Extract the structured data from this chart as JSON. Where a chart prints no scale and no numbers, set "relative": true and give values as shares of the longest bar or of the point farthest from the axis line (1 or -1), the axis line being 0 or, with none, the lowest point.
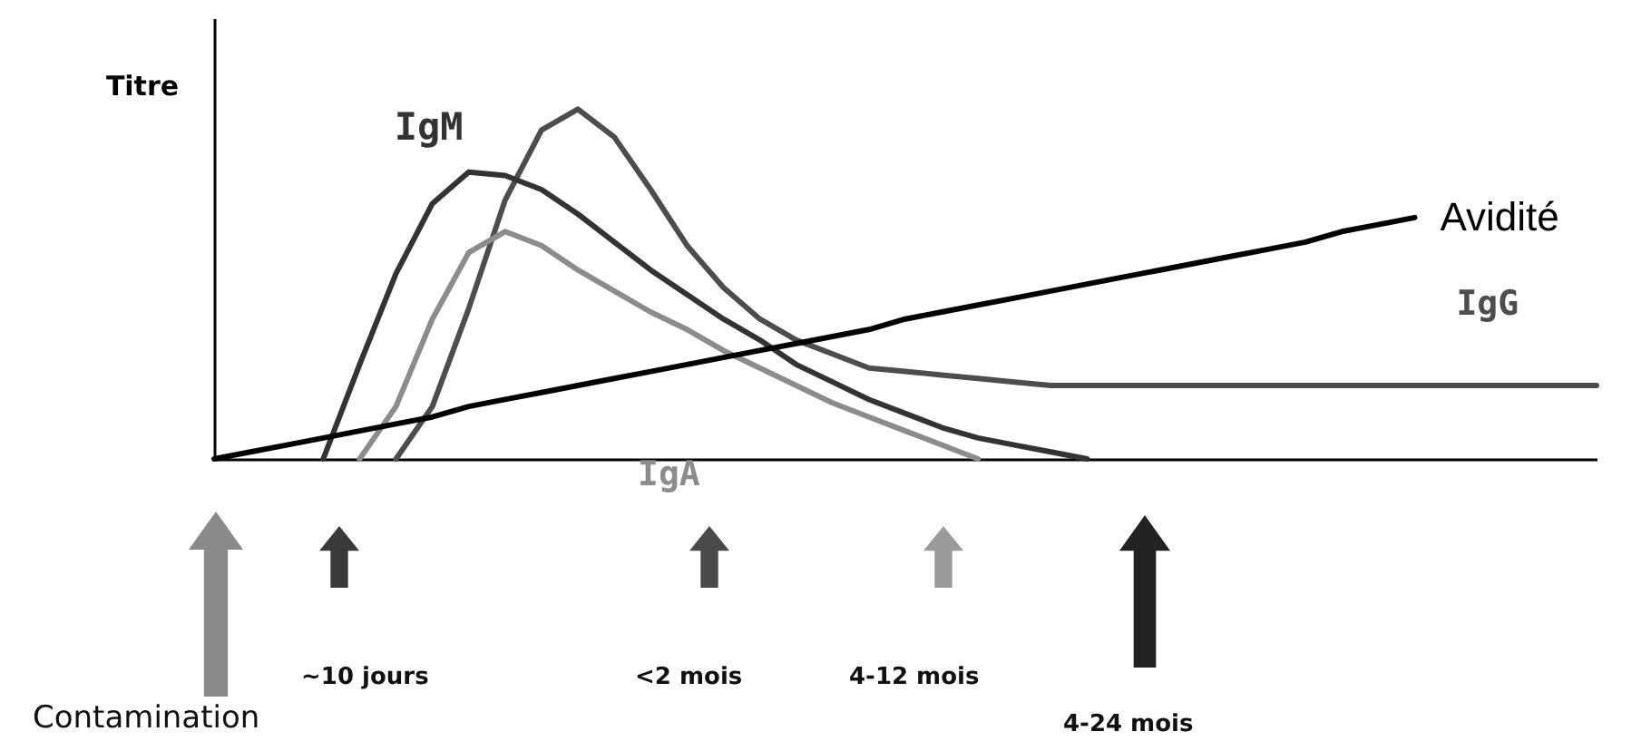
{
  "chart_data": {
    "type": "line",
    "relative": true,
    "ylabel": "Titre",
    "categories": [
      null,
      null,
      null,
      null,
      null,
      null,
      null,
      null,
      null,
      null,
      null,
      null,
      null,
      null,
      null,
      null,
      null,
      null,
      null,
      null,
      null,
      null,
      null,
      null,
      null,
      null,
      null,
      null,
      null,
      null,
      null,
      null,
      null,
      null,
      null,
      null,
      null,
      null,
      null
    ],
    "series": [
      {
        "name": "IgG",
        "color": "#4d4d4d",
        "values": [
          null,
          null,
          null,
          null,
          null,
          0,
          0.15,
          0.43,
          0.74,
          0.94,
          1.0,
          0.92,
          0.77,
          0.61,
          0.49,
          0.4,
          0.34,
          0.3,
          0.26,
          0.25,
          0.24,
          0.23,
          0.22,
          0.21,
          0.21,
          0.21,
          0.21,
          0.21,
          0.21,
          0.21,
          0.21,
          0.21,
          0.21,
          0.21,
          0.21,
          0.21,
          0.21,
          0.21,
          0.21
        ]
      },
      {
        "name": "IgM",
        "color": "#333333",
        "values": [
          null,
          null,
          null,
          0,
          0.27,
          0.53,
          0.73,
          0.82,
          0.81,
          0.77,
          0.7,
          0.62,
          0.54,
          0.47,
          0.4,
          0.34,
          0.27,
          0.22,
          0.17,
          0.13,
          0.09,
          0.06,
          0.04,
          0.02,
          0,
          null,
          null,
          null,
          null,
          null,
          null,
          null,
          null,
          null,
          null,
          null,
          null,
          null,
          null
        ]
      },
      {
        "name": "IgA",
        "color": "#8c8c8c",
        "values": [
          null,
          null,
          null,
          null,
          0,
          0.15,
          0.4,
          0.59,
          0.65,
          0.61,
          0.54,
          0.48,
          0.42,
          0.37,
          0.31,
          0.26,
          0.21,
          0.16,
          0.12,
          0.08,
          0.04,
          0,
          null,
          null,
          null,
          null,
          null,
          null,
          null,
          null,
          null,
          null,
          null,
          null,
          null,
          null,
          null,
          null,
          null
        ]
      },
      {
        "name": "Avidité",
        "color": "#000000",
        "values": [
          0,
          0.02,
          0.04,
          0.06,
          0.08,
          0.1,
          0.12,
          0.15,
          0.17,
          0.19,
          0.21,
          0.23,
          0.25,
          0.27,
          0.29,
          0.31,
          0.33,
          0.35,
          0.37,
          0.4,
          0.42,
          0.44,
          0.46,
          0.48,
          0.5,
          0.52,
          0.54,
          0.56,
          0.58,
          0.6,
          0.62,
          0.65,
          0.67,
          0.69,
          null,
          null,
          null,
          null,
          null
        ]
      }
    ],
    "annotations": [
      "Contamination",
      "~10 jours",
      "<2 mois",
      "4-12 mois",
      "4-24 mois"
    ]
  }
}
